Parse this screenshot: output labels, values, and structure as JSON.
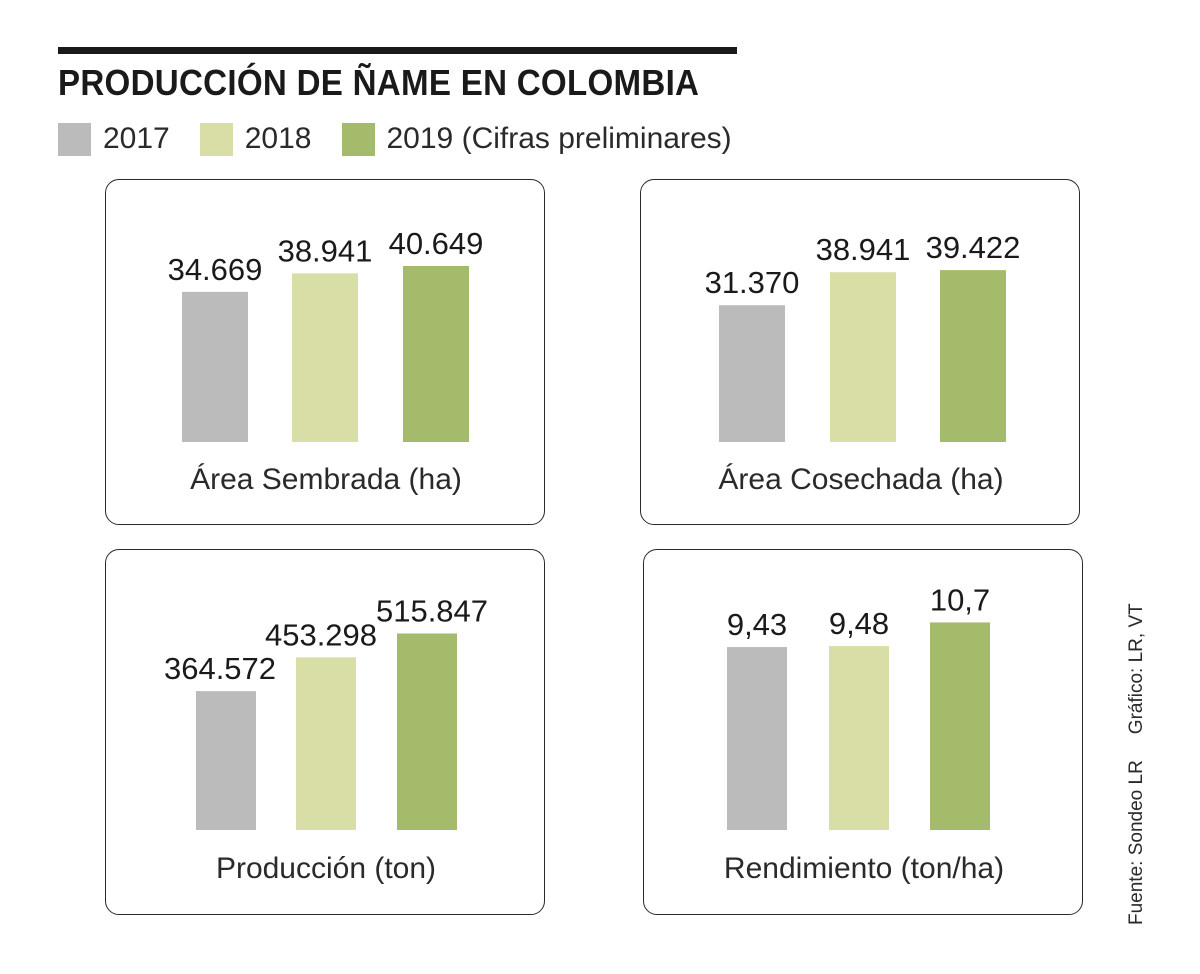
{
  "title": "PRODUCCIÓN DE ÑAME EN COLOMBIA",
  "legend": [
    {
      "label": "2017",
      "color": "#bbbbbb"
    },
    {
      "label": "2018",
      "color": "#d8dea6"
    },
    {
      "label": "2019 (Cifras preliminares)",
      "color": "#a3bb6b"
    }
  ],
  "source": {
    "fuente": "Fuente: Sondeo LR",
    "grafico": "Gráfico: LR, VT"
  },
  "chart_data": [
    {
      "type": "bar",
      "title": "Área Sembrada (ha)",
      "categories": [
        "2017",
        "2018",
        "2019"
      ],
      "values": [
        34669,
        38941,
        40649
      ],
      "value_labels": [
        "34.669",
        "38.941",
        "40.649"
      ],
      "colors": [
        "#bbbbbb",
        "#d8dea6",
        "#a3bb6b"
      ],
      "grid": false
    },
    {
      "type": "bar",
      "title": "Área Cosechada (ha)",
      "categories": [
        "2017",
        "2018",
        "2019"
      ],
      "values": [
        31370,
        38941,
        39422
      ],
      "value_labels": [
        "31.370",
        "38.941",
        "39.422"
      ],
      "colors": [
        "#bbbbbb",
        "#d8dea6",
        "#a3bb6b"
      ],
      "grid": false
    },
    {
      "type": "bar",
      "title": "Producción (ton)",
      "categories": [
        "2017",
        "2018",
        "2019"
      ],
      "values": [
        364572,
        453298,
        515847
      ],
      "value_labels": [
        "364.572",
        "453.298",
        "515.847"
      ],
      "colors": [
        "#bbbbbb",
        "#d8dea6",
        "#a3bb6b"
      ],
      "grid": false
    },
    {
      "type": "bar",
      "title": "Rendimiento (ton/ha)",
      "categories": [
        "2017",
        "2018",
        "2019"
      ],
      "values": [
        9.43,
        9.48,
        10.7
      ],
      "value_labels": [
        "9,43",
        "9,48",
        "10,7"
      ],
      "colors": [
        "#bbbbbb",
        "#d8dea6",
        "#a3bb6b"
      ],
      "grid": false
    }
  ]
}
